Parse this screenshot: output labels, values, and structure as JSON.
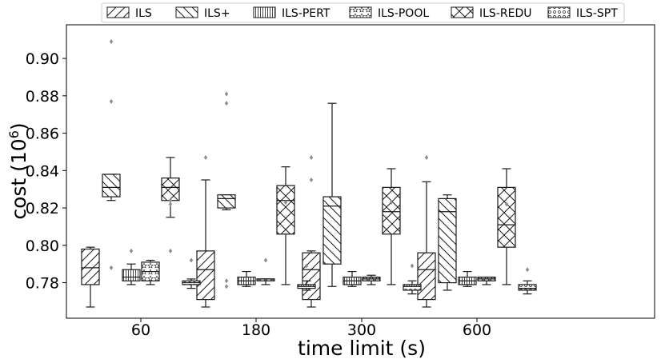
{
  "chart_data": {
    "type": "box",
    "ylabel_base": "cost (10",
    "ylabel_exp": "6",
    "ylabel_close": ")",
    "xlabel": "time limit (s)",
    "categories": [
      "60",
      "180",
      "300",
      "600"
    ],
    "ylim": [
      0.761,
      0.918
    ],
    "yticks": [
      0.78,
      0.8,
      0.82,
      0.84,
      0.86,
      0.88,
      0.9
    ],
    "ytick_labels": [
      "0.78",
      "0.80",
      "0.82",
      "0.84",
      "0.86",
      "0.88",
      "0.90"
    ],
    "grid": false,
    "legend_position": "top",
    "series": [
      {
        "name": "ILS",
        "hatch": "forward-diagonal",
        "boxes": [
          {
            "whislo": 0.767,
            "q1": 0.779,
            "med": 0.788,
            "q3": 0.798,
            "whishi": 0.799,
            "fliers": []
          },
          {
            "whislo": 0.767,
            "q1": 0.771,
            "med": 0.787,
            "q3": 0.797,
            "whishi": 0.835,
            "fliers": [
              0.847
            ]
          },
          {
            "whislo": 0.767,
            "q1": 0.771,
            "med": 0.787,
            "q3": 0.796,
            "whishi": 0.797,
            "fliers": [
              0.835,
              0.847
            ]
          },
          {
            "whislo": 0.767,
            "q1": 0.771,
            "med": 0.787,
            "q3": 0.796,
            "whishi": 0.834,
            "fliers": [
              0.847
            ]
          }
        ]
      },
      {
        "name": "ILS+",
        "hatch": "back-diagonal",
        "boxes": [
          {
            "whislo": 0.824,
            "q1": 0.826,
            "med": 0.831,
            "q3": 0.838,
            "whishi": 0.838,
            "fliers": [
              0.788,
              0.877,
              0.909
            ]
          },
          {
            "whislo": 0.819,
            "q1": 0.82,
            "med": 0.825,
            "q3": 0.827,
            "whishi": 0.827,
            "fliers": [
              0.778,
              0.781,
              0.876,
              0.881
            ]
          },
          {
            "whislo": 0.778,
            "q1": 0.79,
            "med": 0.821,
            "q3": 0.826,
            "whishi": 0.876,
            "fliers": []
          },
          {
            "whislo": 0.776,
            "q1": 0.78,
            "med": 0.818,
            "q3": 0.825,
            "whishi": 0.827,
            "fliers": []
          }
        ]
      },
      {
        "name": "ILS-PERT",
        "hatch": "vertical",
        "boxes": [
          {
            "whislo": 0.779,
            "q1": 0.781,
            "med": 0.783,
            "q3": 0.787,
            "whishi": 0.79,
            "fliers": [
              0.797
            ]
          },
          {
            "whislo": 0.778,
            "q1": 0.779,
            "med": 0.781,
            "q3": 0.783,
            "whishi": 0.786,
            "fliers": []
          },
          {
            "whislo": 0.778,
            "q1": 0.779,
            "med": 0.781,
            "q3": 0.783,
            "whishi": 0.786,
            "fliers": []
          },
          {
            "whislo": 0.778,
            "q1": 0.779,
            "med": 0.781,
            "q3": 0.783,
            "whishi": 0.786,
            "fliers": []
          }
        ]
      },
      {
        "name": "ILS-POOL",
        "hatch": "stars",
        "boxes": [
          {
            "whislo": 0.779,
            "q1": 0.781,
            "med": 0.786,
            "q3": 0.791,
            "whishi": 0.792,
            "fliers": []
          },
          {
            "whislo": 0.779,
            "q1": 0.781,
            "med": 0.782,
            "q3": 0.782,
            "whishi": 0.782,
            "fliers": [
              0.792
            ]
          },
          {
            "whislo": 0.779,
            "q1": 0.781,
            "med": 0.782,
            "q3": 0.783,
            "whishi": 0.784,
            "fliers": []
          },
          {
            "whislo": 0.779,
            "q1": 0.781,
            "med": 0.782,
            "q3": 0.783,
            "whishi": 0.783,
            "fliers": []
          }
        ]
      },
      {
        "name": "ILS-REDU",
        "hatch": "cross",
        "boxes": [
          {
            "whislo": 0.815,
            "q1": 0.824,
            "med": 0.831,
            "q3": 0.836,
            "whishi": 0.847,
            "fliers": [
              0.797,
              0.822,
              0.824
            ]
          },
          {
            "whislo": 0.779,
            "q1": 0.806,
            "med": 0.824,
            "q3": 0.832,
            "whishi": 0.842,
            "fliers": [
              0.823
            ]
          },
          {
            "whislo": 0.779,
            "q1": 0.806,
            "med": 0.818,
            "q3": 0.831,
            "whishi": 0.841,
            "fliers": [
              0.823
            ]
          },
          {
            "whislo": 0.779,
            "q1": 0.799,
            "med": 0.811,
            "q3": 0.831,
            "whishi": 0.841,
            "fliers": [
              0.822
            ]
          }
        ]
      },
      {
        "name": "ILS-SPT",
        "hatch": "dots",
        "boxes": [
          {
            "whislo": 0.777,
            "q1": 0.779,
            "med": 0.78,
            "q3": 0.781,
            "whishi": 0.782,
            "fliers": [
              0.792
            ]
          },
          {
            "whislo": 0.776,
            "q1": 0.777,
            "med": 0.778,
            "q3": 0.779,
            "whishi": 0.781,
            "fliers": [
              0.789
            ]
          },
          {
            "whislo": 0.774,
            "q1": 0.776,
            "med": 0.778,
            "q3": 0.779,
            "whishi": 0.781,
            "fliers": [
              0.789
            ]
          },
          {
            "whislo": 0.774,
            "q1": 0.776,
            "med": 0.777,
            "q3": 0.779,
            "whishi": 0.781,
            "fliers": [
              0.787
            ]
          }
        ]
      }
    ],
    "colors": {
      "box_edge": "#1a1a1a",
      "flier": "#8c8c8c",
      "background": "#ffffff"
    }
  }
}
